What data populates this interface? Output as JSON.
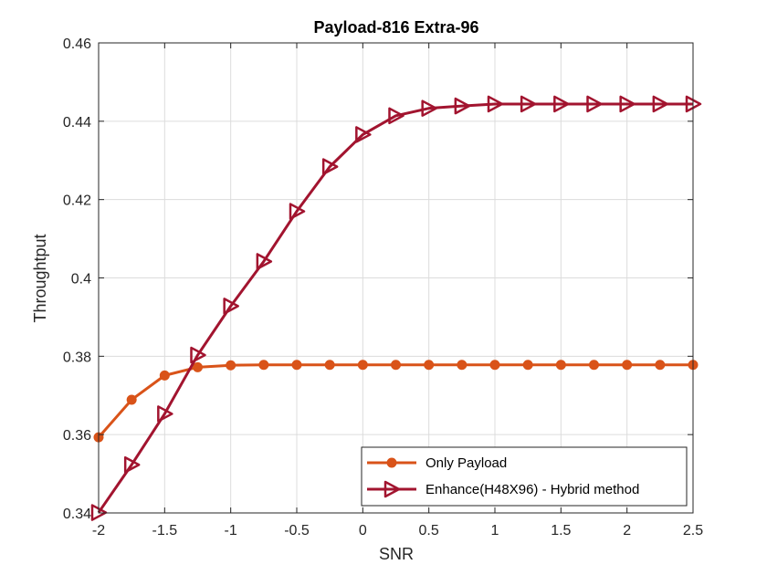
{
  "chart_data": {
    "type": "line",
    "title": "Payload-816 Extra-96",
    "xlabel": "SNR",
    "ylabel": "Throughtput",
    "xlim": [
      -2,
      2.5
    ],
    "ylim": [
      0.34,
      0.46
    ],
    "xticks": [
      "-2",
      "-1.5",
      "-1",
      "-0.5",
      "0",
      "0.5",
      "1",
      "1.5",
      "2",
      "2.5"
    ],
    "yticks": [
      "0.34",
      "0.36",
      "0.38",
      "0.4",
      "0.42",
      "0.44",
      "0.46"
    ],
    "grid": true,
    "legend_position": "bottom-right",
    "x": [
      -2,
      -1.75,
      -1.5,
      -1.25,
      -1,
      -0.75,
      -0.5,
      -0.25,
      0,
      0.25,
      0.5,
      0.75,
      1,
      1.25,
      1.5,
      1.75,
      2,
      2.25,
      2.5
    ],
    "series": [
      {
        "name": "Only Payload",
        "color": "#D95319",
        "marker": "circle",
        "values": [
          0.3593,
          0.3689,
          0.3751,
          0.3772,
          0.3777,
          0.3778,
          0.3778,
          0.3778,
          0.3778,
          0.3778,
          0.3778,
          0.3778,
          0.3778,
          0.3778,
          0.3778,
          0.3778,
          0.3778,
          0.3778,
          0.3778
        ]
      },
      {
        "name": "Enhance(H48X96) - Hybrid method",
        "color": "#A2142F",
        "marker": "triangle-right",
        "values": [
          0.3401,
          0.3523,
          0.3653,
          0.3803,
          0.3928,
          0.4042,
          0.417,
          0.4284,
          0.4366,
          0.4414,
          0.4433,
          0.4439,
          0.4444,
          0.4444,
          0.4444,
          0.4444,
          0.4444,
          0.4444,
          0.4444
        ]
      }
    ]
  }
}
